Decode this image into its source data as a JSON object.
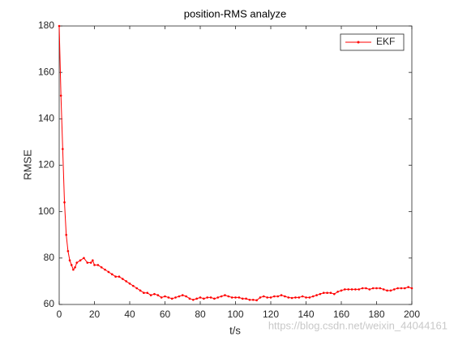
{
  "chart_data": {
    "type": "line",
    "title": "position-RMS analyze",
    "xlabel": "t/s",
    "ylabel": "RMSE",
    "x": [
      0,
      1,
      2,
      3,
      4,
      5,
      6,
      7,
      8,
      9,
      10,
      12,
      14,
      16,
      18,
      19,
      20,
      22,
      24,
      26,
      28,
      30,
      32,
      34,
      36,
      38,
      40,
      42,
      44,
      46,
      48,
      50,
      52,
      54,
      56,
      58,
      60,
      62,
      64,
      66,
      68,
      70,
      72,
      74,
      76,
      78,
      80,
      82,
      84,
      86,
      88,
      90,
      92,
      94,
      96,
      98,
      100,
      102,
      104,
      106,
      108,
      110,
      112,
      114,
      116,
      118,
      120,
      122,
      124,
      126,
      128,
      130,
      132,
      134,
      136,
      138,
      140,
      142,
      144,
      146,
      148,
      150,
      152,
      154,
      156,
      158,
      160,
      162,
      164,
      166,
      168,
      170,
      172,
      174,
      176,
      178,
      180,
      182,
      184,
      186,
      188,
      190,
      192,
      194,
      196,
      198,
      200
    ],
    "series": [
      {
        "name": "EKF",
        "color": "#ff0000",
        "values": [
          180,
          150,
          127,
          104,
          90,
          83,
          79,
          77,
          75,
          76,
          78,
          79,
          80,
          78,
          78,
          79,
          77,
          77,
          76,
          75,
          74,
          73,
          72,
          72,
          71,
          70,
          69,
          68,
          67,
          66,
          65,
          65,
          64,
          64.5,
          64,
          63,
          63.5,
          63,
          62.5,
          63,
          63.5,
          64,
          63.5,
          62.5,
          62,
          62.5,
          63,
          62.5,
          63,
          63,
          62.5,
          63,
          63.5,
          64,
          63.5,
          63,
          63,
          63,
          62.5,
          62.5,
          62,
          62,
          61.8,
          63,
          63.5,
          63,
          63,
          63.5,
          63.5,
          64,
          63.5,
          63,
          62.8,
          63,
          63,
          63.5,
          63,
          63,
          63.5,
          64,
          64.5,
          65,
          65,
          65,
          64.5,
          65.5,
          66,
          66.5,
          66.5,
          66.5,
          66.5,
          66.5,
          67,
          67,
          66.5,
          67,
          67,
          67,
          66.5,
          66,
          66,
          66.5,
          67,
          67,
          67,
          67.5,
          67
        ]
      }
    ],
    "xlim": [
      0,
      200
    ],
    "ylim": [
      60,
      180
    ],
    "xticks": [
      0,
      20,
      40,
      60,
      80,
      100,
      120,
      140,
      160,
      180,
      200
    ],
    "yticks": [
      60,
      80,
      100,
      120,
      140,
      160,
      180
    ],
    "grid": false,
    "legend": "northeast",
    "watermark": "https://blog.csdn.net/weixin_44044161"
  }
}
